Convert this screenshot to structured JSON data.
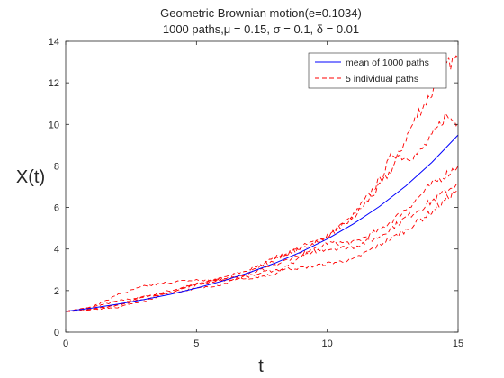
{
  "chart_data": {
    "type": "line",
    "title": "Geometric Brownian motion(e=0.1034)",
    "subtitle": "1000 paths,μ = 0.15, σ = 0.1, δ = 0.01",
    "xlabel": "t",
    "ylabel": "X(t)",
    "xlim": [
      0,
      15
    ],
    "ylim": [
      0,
      14
    ],
    "x_ticks": [
      0,
      5,
      10,
      15
    ],
    "y_ticks": [
      0,
      2,
      4,
      6,
      8,
      10,
      12,
      14
    ],
    "grid": false,
    "legend_position": "top-right",
    "legend": [
      {
        "label": "mean of 1000 paths",
        "color": "#0000ff",
        "style": "solid"
      },
      {
        "label": "5 individual paths",
        "color": "#ff0000",
        "style": "dashed"
      }
    ],
    "mean_series": {
      "name": "mean of 1000 paths",
      "color": "#0000ff",
      "x": [
        0,
        1,
        2,
        3,
        4,
        5,
        6,
        7,
        8,
        9,
        10,
        11,
        12,
        13,
        14,
        15
      ],
      "y": [
        1.0,
        1.16,
        1.35,
        1.57,
        1.82,
        2.12,
        2.46,
        2.86,
        3.32,
        3.86,
        4.48,
        5.21,
        6.05,
        7.03,
        8.17,
        9.49
      ]
    },
    "individual_paths": [
      {
        "color": "#ff0000",
        "x": [
          0,
          1,
          2,
          3,
          4,
          5,
          6,
          7,
          7.5,
          8,
          9,
          10,
          11,
          12,
          12.5,
          13,
          13.5,
          14,
          14.5,
          15
        ],
        "y": [
          1.0,
          1.2,
          1.5,
          1.7,
          2.0,
          2.3,
          2.5,
          2.8,
          3.3,
          3.6,
          4.0,
          4.6,
          5.5,
          7.0,
          7.9,
          9.3,
          10.6,
          11.5,
          12.8,
          13.2
        ]
      },
      {
        "color": "#ff0000",
        "x": [
          0,
          1,
          2,
          3,
          4,
          5,
          6,
          7,
          8,
          9,
          10,
          11,
          12,
          12.5,
          13,
          13.5,
          14,
          14.5,
          15
        ],
        "y": [
          1.0,
          1.1,
          1.3,
          1.6,
          1.9,
          2.3,
          2.6,
          3.0,
          3.5,
          4.1,
          4.6,
          5.6,
          7.3,
          8.6,
          8.4,
          8.6,
          9.4,
          10.4,
          10.1
        ]
      },
      {
        "color": "#ff0000",
        "x": [
          0,
          1,
          2,
          3,
          4,
          5,
          6,
          7,
          8,
          9,
          10,
          11,
          12,
          13,
          14,
          15
        ],
        "y": [
          1.0,
          1.2,
          1.8,
          2.2,
          2.4,
          2.5,
          2.5,
          2.6,
          2.8,
          3.6,
          4.3,
          4.3,
          4.9,
          5.9,
          7.1,
          8.0
        ]
      },
      {
        "color": "#ff0000",
        "x": [
          0,
          1,
          2,
          3,
          4,
          5,
          6,
          7,
          8,
          9,
          10,
          11,
          12,
          13,
          14,
          15
        ],
        "y": [
          1.0,
          1.1,
          1.3,
          1.7,
          1.9,
          2.1,
          2.3,
          2.8,
          3.2,
          3.8,
          4.0,
          4.1,
          4.6,
          5.5,
          6.3,
          7.2
        ]
      },
      {
        "color": "#ff0000",
        "x": [
          0,
          1,
          2,
          3,
          4,
          5,
          6,
          7,
          8,
          9,
          10,
          11,
          12,
          13,
          14,
          15
        ],
        "y": [
          1.0,
          1.1,
          1.2,
          1.5,
          1.9,
          2.3,
          2.6,
          2.7,
          3.0,
          3.1,
          3.3,
          3.5,
          4.2,
          4.9,
          5.8,
          6.9
        ]
      }
    ]
  }
}
